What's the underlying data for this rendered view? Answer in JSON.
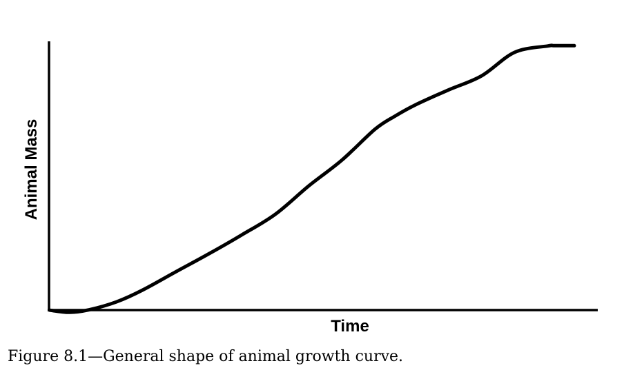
{
  "chart_data": {
    "type": "line",
    "title": "",
    "xlabel": "Time",
    "ylabel": "Animal Mass",
    "xlim": [
      0,
      100
    ],
    "ylim": [
      0,
      100
    ],
    "xticks": [],
    "yticks": [],
    "grid": false,
    "legend": "none",
    "series": [
      {
        "color": "#000000",
        "x": [
          0,
          3.8,
          7.6,
          12.7,
          17.7,
          24.1,
          30.4,
          36.7,
          43.0,
          49.4,
          55.7,
          62.0,
          65.8,
          69.6,
          75.9,
          82.3,
          88.6,
          95.0,
          96.2,
          100
        ],
        "y": [
          0.2,
          -0.6,
          0.4,
          3.3,
          7.7,
          14.6,
          21.3,
          28.4,
          36.0,
          46.6,
          56.2,
          67.7,
          72.6,
          76.7,
          82.3,
          87.6,
          96.4,
          98.8,
          98.9,
          98.9
        ]
      }
    ]
  },
  "caption": "Figure 8.1—General shape of animal growth curve."
}
